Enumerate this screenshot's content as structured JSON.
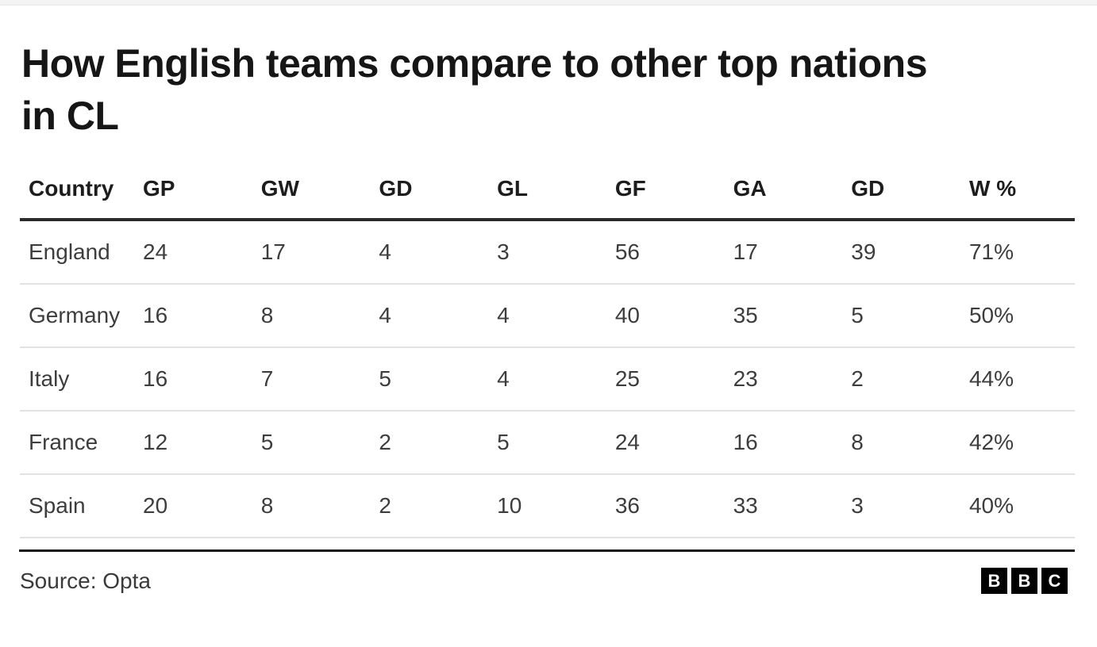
{
  "title": {
    "line1": "How English teams compare to other top nations",
    "line2": "in CL"
  },
  "table": {
    "columns": [
      "Country",
      "GP",
      "GW",
      "GD",
      "GL",
      "GF",
      "GA",
      "GD",
      "W %"
    ],
    "rows": [
      {
        "country": "England",
        "values": [
          "24",
          "17",
          "4",
          "3",
          "56",
          "17",
          "39",
          "71%"
        ]
      },
      {
        "country": "Germany",
        "values": [
          "16",
          "8",
          "4",
          "4",
          "40",
          "35",
          "5",
          "50%"
        ]
      },
      {
        "country": "Italy",
        "values": [
          "16",
          "7",
          "5",
          "4",
          "25",
          "23",
          "2",
          "44%"
        ]
      },
      {
        "country": "France",
        "values": [
          "12",
          "5",
          "2",
          "5",
          "24",
          "16",
          "8",
          "42%"
        ]
      },
      {
        "country": "Spain",
        "values": [
          "20",
          "8",
          "2",
          "10",
          "36",
          "33",
          "3",
          "40%"
        ]
      }
    ]
  },
  "footer": {
    "source": "Source: Opta",
    "logo_letters": [
      "B",
      "B",
      "C"
    ]
  },
  "colors": {
    "title_text": "#161616",
    "header_text": "#1d1d1d",
    "body_text": "#3d3d3d",
    "header_rule": "#2b2b2b",
    "row_separator": "#e2e2e2",
    "footer_rule": "#141414",
    "logo_background": "#000000",
    "logo_letter": "#ffffff"
  },
  "chart_data": {
    "type": "table",
    "title": "How English teams compare to other top nations in CL",
    "columns": [
      "Country",
      "GP",
      "GW",
      "GD",
      "GL",
      "GF",
      "GA",
      "GD",
      "W %"
    ],
    "rows": [
      [
        "England",
        24,
        17,
        4,
        3,
        56,
        17,
        39,
        "71%"
      ],
      [
        "Germany",
        16,
        8,
        4,
        4,
        40,
        35,
        5,
        "50%"
      ],
      [
        "Italy",
        16,
        7,
        5,
        4,
        25,
        23,
        2,
        "44%"
      ],
      [
        "France",
        12,
        5,
        2,
        5,
        24,
        16,
        8,
        "42%"
      ],
      [
        "Spain",
        20,
        8,
        2,
        10,
        36,
        33,
        3,
        "40%"
      ]
    ],
    "source": "Source: Opta",
    "legend_position": "none",
    "grid": "horizontal-rules"
  }
}
